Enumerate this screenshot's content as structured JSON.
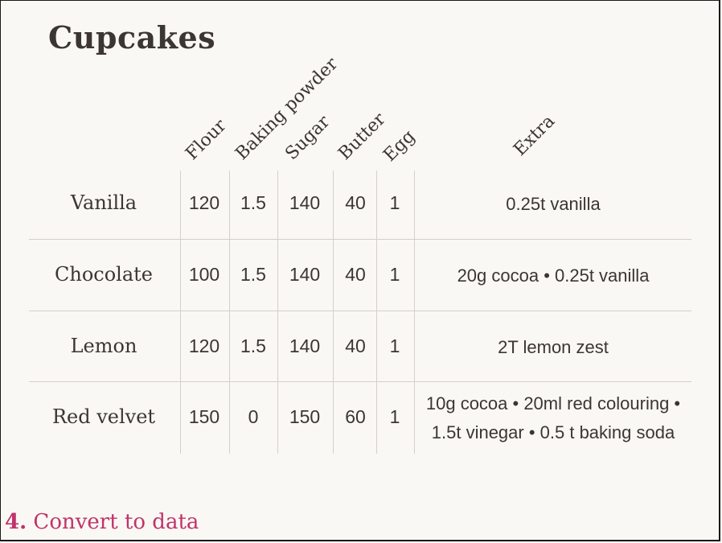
{
  "title": "Cupcakes",
  "columns": [
    "Flour",
    "Baking powder",
    "Sugar",
    "Butter",
    "Egg",
    "Extra"
  ],
  "rows": [
    {
      "name": "Vanilla",
      "values": [
        "120",
        "1.5",
        "140",
        "40",
        "1"
      ],
      "extra_lines": [
        "0.25t vanilla"
      ]
    },
    {
      "name": "Chocolate",
      "values": [
        "100",
        "1.5",
        "140",
        "40",
        "1"
      ],
      "extra_lines": [
        "20g cocoa • 0.25t vanilla"
      ]
    },
    {
      "name": "Lemon",
      "values": [
        "120",
        "1.5",
        "140",
        "40",
        "1"
      ],
      "extra_lines": [
        "2T lemon zest"
      ]
    },
    {
      "name": "Red velvet",
      "values": [
        "150",
        "0",
        "150",
        "60",
        "1"
      ],
      "extra_lines": [
        "10g cocoa • 20ml red colouring •",
        "1.5t vinegar • 0.5 t baking soda"
      ]
    }
  ],
  "footer": {
    "number": "4.",
    "text": "Convert to data"
  },
  "colors": {
    "text": "#3b3633",
    "accent": "#c0336a",
    "rule": "#d4d0ca",
    "background": "#faf8f4"
  }
}
